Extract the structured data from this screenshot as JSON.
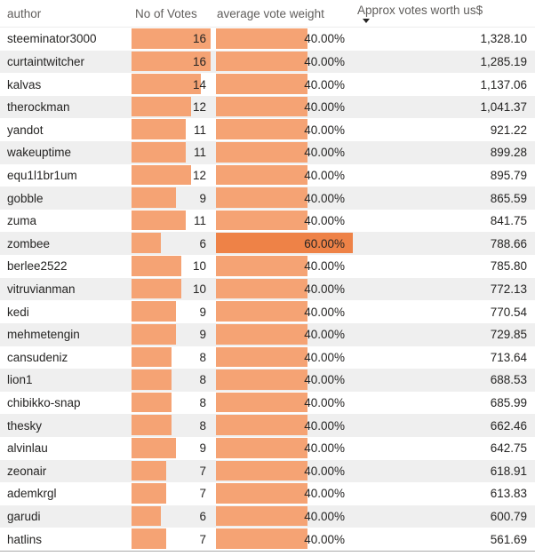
{
  "header": {
    "author": "author",
    "votes": "No of Votes",
    "weight": "average vote weight",
    "worth": "Approx votes worth us$"
  },
  "sort": {
    "column": "Approx votes worth us$",
    "direction": "desc"
  },
  "colors": {
    "bar": "#F5A374",
    "bar_highlight": "#EE8247",
    "alt_row": "#EFEFEF",
    "header_text": "#605E5C",
    "body_text": "#252423"
  },
  "chart_data": {
    "type": "table",
    "columns": [
      "author",
      "No of Votes",
      "average vote weight",
      "Approx votes worth us$"
    ],
    "votes_axis_max": 16,
    "weight_axis_max": 60,
    "rows": [
      {
        "author": "steeminator3000",
        "votes": 16,
        "weight_pct": 40,
        "weight_label": "40.00%",
        "worth": "1,328.10"
      },
      {
        "author": "curtaintwitcher",
        "votes": 16,
        "weight_pct": 40,
        "weight_label": "40.00%",
        "worth": "1,285.19"
      },
      {
        "author": "kalvas",
        "votes": 14,
        "weight_pct": 40,
        "weight_label": "40.00%",
        "worth": "1,137.06"
      },
      {
        "author": "therockman",
        "votes": 12,
        "weight_pct": 40,
        "weight_label": "40.00%",
        "worth": "1,041.37"
      },
      {
        "author": "yandot",
        "votes": 11,
        "weight_pct": 40,
        "weight_label": "40.00%",
        "worth": "921.22"
      },
      {
        "author": "wakeuptime",
        "votes": 11,
        "weight_pct": 40,
        "weight_label": "40.00%",
        "worth": "899.28"
      },
      {
        "author": "equ1l1br1um",
        "votes": 12,
        "weight_pct": 40,
        "weight_label": "40.00%",
        "worth": "895.79"
      },
      {
        "author": "gobble",
        "votes": 9,
        "weight_pct": 40,
        "weight_label": "40.00%",
        "worth": "865.59"
      },
      {
        "author": "zuma",
        "votes": 11,
        "weight_pct": 40,
        "weight_label": "40.00%",
        "worth": "841.75"
      },
      {
        "author": "zombee",
        "votes": 6,
        "weight_pct": 60,
        "weight_label": "60.00%",
        "worth": "788.66"
      },
      {
        "author": "berlee2522",
        "votes": 10,
        "weight_pct": 40,
        "weight_label": "40.00%",
        "worth": "785.80"
      },
      {
        "author": "vitruvianman",
        "votes": 10,
        "weight_pct": 40,
        "weight_label": "40.00%",
        "worth": "772.13"
      },
      {
        "author": "kedi",
        "votes": 9,
        "weight_pct": 40,
        "weight_label": "40.00%",
        "worth": "770.54"
      },
      {
        "author": "mehmetengin",
        "votes": 9,
        "weight_pct": 40,
        "weight_label": "40.00%",
        "worth": "729.85"
      },
      {
        "author": "cansudeniz",
        "votes": 8,
        "weight_pct": 40,
        "weight_label": "40.00%",
        "worth": "713.64"
      },
      {
        "author": "lion1",
        "votes": 8,
        "weight_pct": 40,
        "weight_label": "40.00%",
        "worth": "688.53"
      },
      {
        "author": "chibikko-snap",
        "votes": 8,
        "weight_pct": 40,
        "weight_label": "40.00%",
        "worth": "685.99"
      },
      {
        "author": "thesky",
        "votes": 8,
        "weight_pct": 40,
        "weight_label": "40.00%",
        "worth": "662.46"
      },
      {
        "author": "alvinlau",
        "votes": 9,
        "weight_pct": 40,
        "weight_label": "40.00%",
        "worth": "642.75"
      },
      {
        "author": "zeonair",
        "votes": 7,
        "weight_pct": 40,
        "weight_label": "40.00%",
        "worth": "618.91"
      },
      {
        "author": "ademkrgl",
        "votes": 7,
        "weight_pct": 40,
        "weight_label": "40.00%",
        "worth": "613.83"
      },
      {
        "author": "garudi",
        "votes": 6,
        "weight_pct": 40,
        "weight_label": "40.00%",
        "worth": "600.79"
      },
      {
        "author": "hatlins",
        "votes": 7,
        "weight_pct": 40,
        "weight_label": "40.00%",
        "worth": "561.69"
      }
    ]
  }
}
